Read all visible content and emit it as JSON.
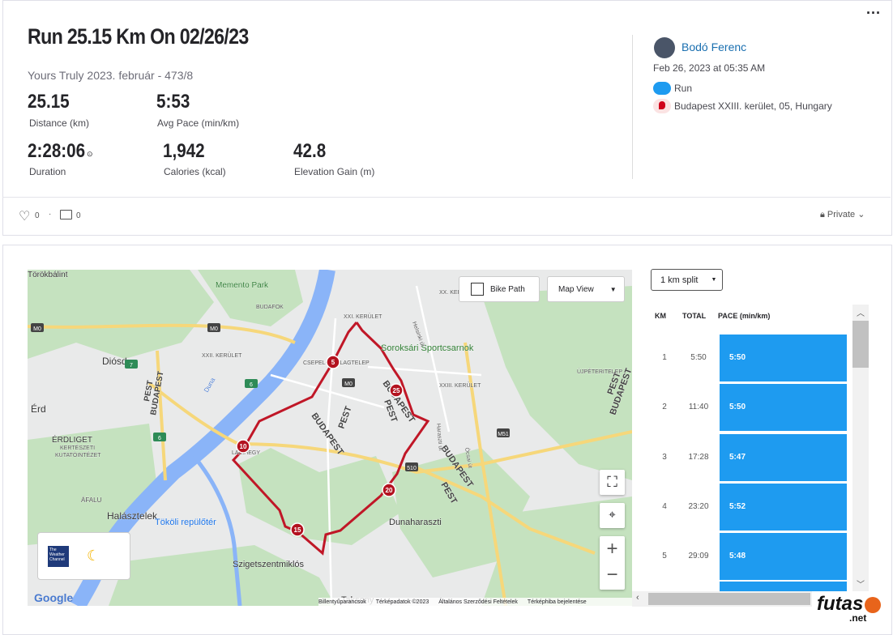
{
  "header": {
    "title": "Run 25.15 Km On 02/26/23",
    "subtitle": "Yours Truly 2023. február -  473/8"
  },
  "stats": [
    {
      "value": "25.15",
      "label": "Distance (km)"
    },
    {
      "value": "5:53",
      "label": "Avg Pace (min/km)"
    },
    {
      "value": "2:28:06",
      "label": "Duration"
    },
    {
      "value": "1,942",
      "label": "Calories (kcal)"
    },
    {
      "value": "42.8",
      "label": "Elevation Gain (m)"
    }
  ],
  "athlete": {
    "name": "Bodó Ferenc",
    "date": "Feb 26, 2023 at 05:35 AM",
    "activity": "Run",
    "location": "Budapest XXIII. kerület, 05, Hungary"
  },
  "social": {
    "likes": "0",
    "comments": "0",
    "privacy": "Private"
  },
  "map": {
    "bike_path": "Bike Path",
    "view": "Map View",
    "labels": [
      "Törökbálint",
      "Memento Park",
      "BUDAFOK",
      "XXI. KERÜLET",
      "XXII. KERÜLET",
      "Diósd",
      "Érd",
      "ÉRDLIGET",
      "KERTÉSZETI",
      "KUTATÓINTÉZET",
      "CSEPEL-CSILLAGTELEP",
      "Soroksári Sportcsarnok",
      "BUDAPEST",
      "PEST",
      "BUDAPEST",
      "PEST",
      "BUDAPEST",
      "PEST",
      "BUDAPEST",
      "PEST",
      "BUDAPEST",
      "PEST",
      "XXIII. KERÜLET",
      "ÚJPÉTERITELEP",
      "XX. KERÜLET",
      "LAKIHEGY",
      "Halásztelek",
      "ÁFALU",
      "Tököli repülőtér",
      "Szigetszentmiklós",
      "Dunaharaszti",
      "Taksony",
      "Duna",
      "Helsinki út",
      "Ócsai út",
      "Haraszti út"
    ],
    "shields": [
      "M0",
      "M0",
      "M0",
      "7",
      "6",
      "6",
      "M51",
      "510"
    ],
    "markers": [
      "5",
      "10",
      "15",
      "20",
      "25"
    ],
    "google": "Google",
    "weather": "The Weather Channel",
    "footer": [
      "Billentyűparancsok",
      "Térképadatok ©2023",
      "Általános Szerződési Feltételek",
      "Térképhiba bejelentése"
    ]
  },
  "splits": {
    "selector": "1 km split",
    "columns": [
      "KM",
      "TOTAL",
      "PACE (min/km)"
    ],
    "rows": [
      [
        "1",
        "5:50",
        "5:50"
      ],
      [
        "2",
        "11:40",
        "5:50"
      ],
      [
        "3",
        "17:28",
        "5:47"
      ],
      [
        "4",
        "23:20",
        "5:52"
      ],
      [
        "5",
        "29:09",
        "5:48"
      ]
    ]
  },
  "watermark": {
    "main": "futas",
    "suffix": ".net"
  }
}
